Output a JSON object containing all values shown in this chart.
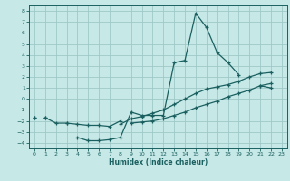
{
  "xlabel": "Humidex (Indice chaleur)",
  "xlim": [
    -0.5,
    23.5
  ],
  "ylim": [
    -4.5,
    8.5
  ],
  "xticks": [
    0,
    1,
    2,
    3,
    4,
    5,
    6,
    7,
    8,
    9,
    10,
    11,
    12,
    13,
    14,
    15,
    16,
    17,
    18,
    19,
    20,
    21,
    22,
    23
  ],
  "yticks": [
    -4,
    -3,
    -2,
    -1,
    0,
    1,
    2,
    3,
    4,
    5,
    6,
    7,
    8
  ],
  "bg_color": "#c6e8e6",
  "grid_color": "#9ec8c6",
  "line_color": "#1a6060",
  "line_width": 0.9,
  "marker": "+",
  "marker_size": 3,
  "series": [
    [
      null,
      -1.7,
      null,
      null,
      -3.5,
      -3.8,
      -3.8,
      -3.7,
      -3.5,
      -1.2,
      -1.5,
      -1.5,
      -1.5,
      3.3,
      3.5,
      7.8,
      6.5,
      4.2,
      3.3,
      2.2,
      null,
      1.2,
      1.0,
      null
    ],
    [
      null,
      -1.7,
      -2.2,
      -2.2,
      -2.3,
      -2.4,
      -2.4,
      -2.5,
      -2.0,
      null,
      null,
      null,
      null,
      null,
      null,
      null,
      null,
      null,
      null,
      null,
      null,
      null,
      null,
      null
    ],
    [
      -1.7,
      null,
      null,
      -2.2,
      null,
      null,
      null,
      null,
      -2.3,
      -1.8,
      -1.6,
      -1.3,
      -1.0,
      -0.5,
      0.0,
      0.5,
      0.9,
      1.1,
      1.3,
      1.6,
      2.0,
      2.3,
      2.4,
      null
    ],
    [
      -1.7,
      null,
      null,
      null,
      null,
      null,
      null,
      null,
      null,
      -2.2,
      -2.1,
      -2.0,
      -1.8,
      -1.5,
      -1.2,
      -0.8,
      -0.5,
      -0.2,
      0.2,
      0.5,
      0.8,
      1.2,
      1.4,
      null
    ]
  ]
}
